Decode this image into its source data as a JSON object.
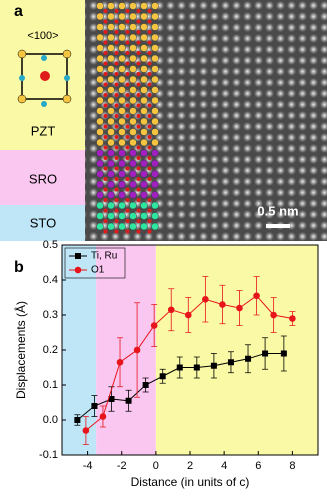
{
  "panel_a": {
    "label": "a",
    "direction": "<100>",
    "layers": [
      "PZT",
      "SRO",
      "STO"
    ],
    "scale_bar": "0.5 nm"
  },
  "chart_data": {
    "type": "line",
    "panel_label": "b",
    "x_label": "Distance (in units of c)",
    "y_label": "Displacements (Å)",
    "xlim": [
      -5.5,
      9.5
    ],
    "xticks": [
      -4,
      -2,
      0,
      2,
      4,
      6,
      8
    ],
    "ylim": [
      -0.1,
      0.5
    ],
    "yticks": [
      -0.1,
      {
        "value": 0,
        "label": "0.0"
      },
      0.1,
      0.2,
      0.3,
      0.4,
      0.5
    ],
    "legend": "upper left",
    "shaded_regions": [
      {
        "from": -5.5,
        "to": -3.5,
        "color": "#bfe6f7"
      },
      {
        "from": -3.5,
        "to": 0,
        "color": "#f9c7f0"
      },
      {
        "from": 0,
        "to": 9.5,
        "color": "#fafaa6"
      }
    ],
    "series": [
      {
        "name": "Ti, Ru",
        "color": "#000000",
        "marker": "square",
        "x": [
          -4.6,
          -3.6,
          -2.6,
          -1.6,
          -0.6,
          0.4,
          1.4,
          2.4,
          3.4,
          4.4,
          5.4,
          6.4,
          7.5
        ],
        "values": [
          0.0,
          0.04,
          0.06,
          0.055,
          0.1,
          0.125,
          0.15,
          0.15,
          0.155,
          0.165,
          0.175,
          0.19,
          0.19
        ],
        "errors": [
          0.015,
          0.03,
          0.035,
          0.03,
          0.02,
          0.02,
          0.03,
          0.03,
          0.035,
          0.03,
          0.04,
          0.045,
          0.05
        ]
      },
      {
        "name": "O1",
        "color": "#e8141b",
        "marker": "circle",
        "x": [
          -4.1,
          -3.1,
          -2.1,
          -1.1,
          -0.1,
          0.9,
          1.9,
          2.9,
          3.9,
          4.9,
          5.9,
          6.9,
          8.0
        ],
        "values": [
          -0.03,
          0.01,
          0.165,
          0.2,
          0.27,
          0.315,
          0.3,
          0.345,
          0.33,
          0.32,
          0.355,
          0.3,
          0.29
        ],
        "errors": [
          0.04,
          0.03,
          0.07,
          0.135,
          0.06,
          0.06,
          0.05,
          0.065,
          0.055,
          0.05,
          0.055,
          0.05,
          0.02
        ]
      }
    ]
  }
}
